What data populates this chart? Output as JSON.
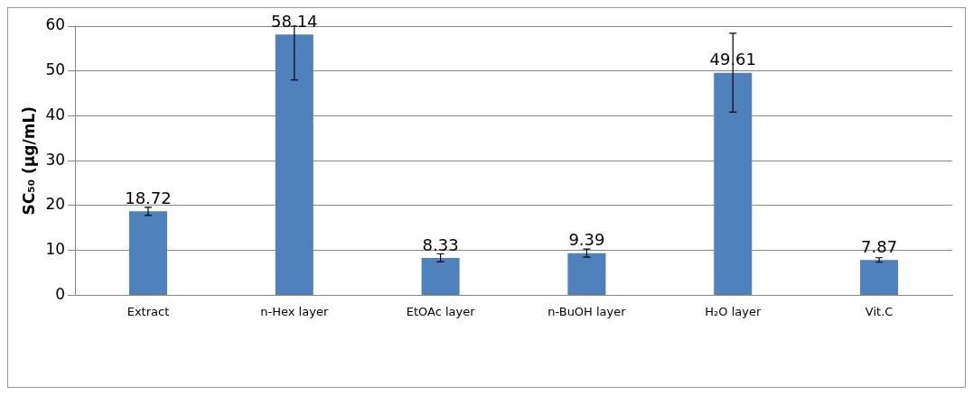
{
  "chart_data": {
    "type": "bar",
    "ylabel": "SC₅₀ (μg/mL)",
    "categories": [
      "Extract",
      "n-Hex layer",
      "EtOAc layer",
      "n-BuOH layer",
      "H₂O layer",
      "Vit.C"
    ],
    "values": [
      18.72,
      58.14,
      8.33,
      9.39,
      49.61,
      7.87
    ],
    "errors": [
      0.9,
      [
        48,
        60
      ],
      0.9,
      0.9,
      8.8,
      0.5
    ],
    "color": "#4f81bd",
    "ylim": [
      0,
      60
    ],
    "yticks": [
      0,
      10,
      20,
      30,
      40,
      50,
      60
    ],
    "grid": "y",
    "data_labels": true,
    "legend": false
  }
}
